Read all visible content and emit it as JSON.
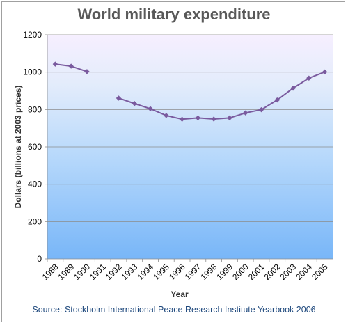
{
  "chart_data": {
    "type": "line",
    "title": "World military expenditure",
    "xlabel": "Year",
    "ylabel": "Dollars (billions at 2003 prices)",
    "ylim": [
      0,
      1200
    ],
    "yticks": [
      0,
      200,
      400,
      600,
      800,
      1000,
      1200
    ],
    "grid": true,
    "legend": "none",
    "categories": [
      "1988",
      "1989",
      "1990",
      "1991",
      "1992",
      "1993",
      "1994",
      "1995",
      "1996",
      "1997",
      "1998",
      "1999",
      "2000",
      "2001",
      "2002",
      "2003",
      "2004",
      "2005"
    ],
    "series": [
      {
        "values": [
          1043,
          1032,
          1003,
          null,
          861,
          832,
          804,
          768,
          748,
          755,
          749,
          755,
          782,
          799,
          851,
          914,
          968,
          1001
        ],
        "color": "#7a5a9e"
      }
    ],
    "source": "Source: Stockholm International Peace Research Institute Yearbook 2006"
  }
}
